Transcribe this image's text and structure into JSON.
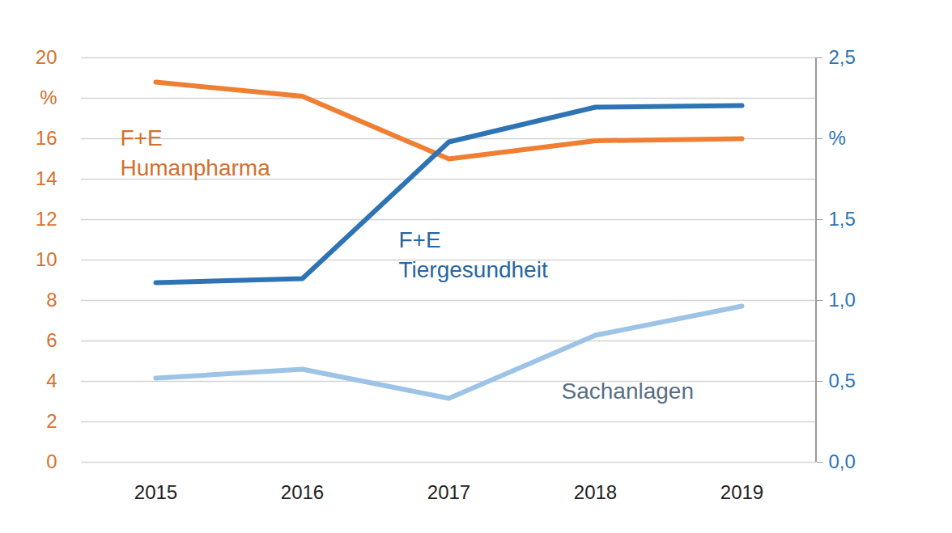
{
  "chart_data": {
    "type": "line",
    "categories": [
      "2015",
      "2016",
      "2017",
      "2018",
      "2019"
    ],
    "ylim": [
      0,
      20
    ],
    "yticks": [
      0,
      2,
      4,
      6,
      8,
      10,
      12,
      14,
      16,
      {
        "value": 18,
        "label": "%"
      },
      20
    ],
    "y2lim": [
      0,
      2.5
    ],
    "y2ticks": [
      {
        "value": 0,
        "label": "0,0"
      },
      {
        "value": 0.5,
        "label": "0,5"
      },
      {
        "value": 1,
        "label": "1,0"
      },
      {
        "value": 1.5,
        "label": "1,5"
      },
      {
        "value": 2,
        "label": "%"
      },
      {
        "value": 2.5,
        "label": "2,5"
      }
    ],
    "grid": true,
    "series": [
      {
        "name": "F+E Humanpharma",
        "color": "#EE7F33",
        "values": [
          18.8,
          18.1,
          15.0,
          15.9,
          16.0
        ]
      },
      {
        "name": "F+E Tiergesundheit",
        "color": "#2E74B5",
        "axis": "y2",
        "values": [
          1.11,
          1.135,
          1.98,
          2.195,
          2.205
        ]
      },
      {
        "name": "Sachanlagen",
        "color": "#9DC3E6",
        "axis": "y2",
        "values": [
          0.52,
          0.575,
          0.395,
          0.785,
          0.965
        ]
      }
    ]
  }
}
